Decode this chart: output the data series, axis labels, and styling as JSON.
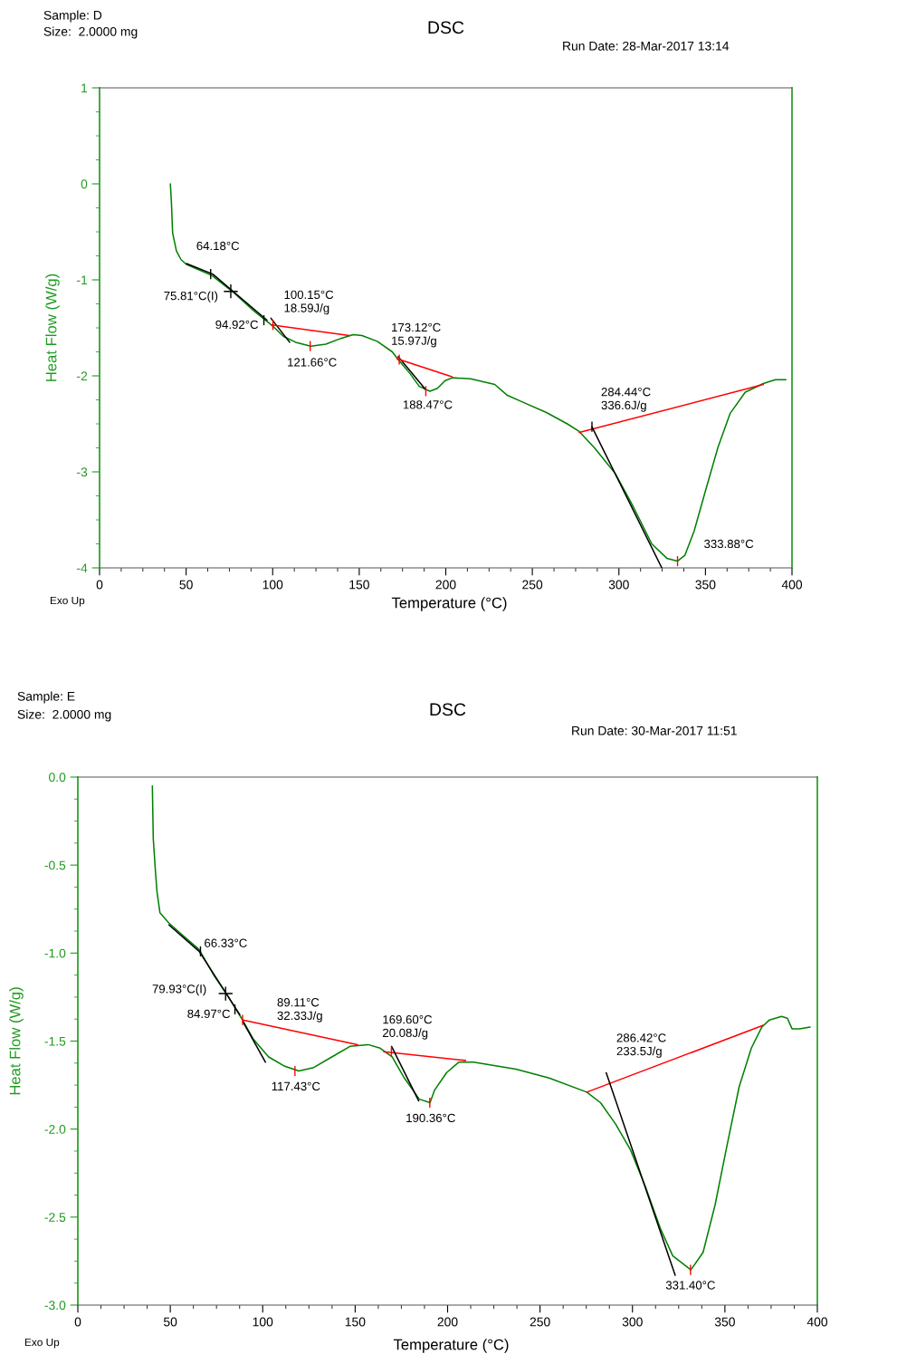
{
  "chart_data": [
    {
      "type": "line",
      "title": "DSC",
      "xlabel": "Temperature (°C)",
      "ylabel": "Heat Flow (W/g)",
      "xlim": [
        0,
        400
      ],
      "ylim": [
        -4,
        1
      ],
      "xticks": [
        0,
        50,
        100,
        150,
        200,
        250,
        300,
        350,
        400
      ],
      "yticks": [
        -4,
        -3,
        -2,
        -1,
        0,
        1
      ],
      "series": [
        {
          "color": "#008000",
          "x": [
            40.9,
            41.5,
            42.2,
            44.4,
            47.1,
            50.2,
            64.5,
            76.7,
            88.9,
            99.3,
            106.3,
            113.3,
            122.0,
            130.7,
            139.4,
            146.4,
            151.6,
            160.4,
            169.1,
            172.5,
            179.5,
            184.7,
            190.8,
            195.2,
            199.6,
            203.9,
            214.4,
            228.3,
            235.3,
            244.0,
            257.9,
            270.2,
            277.1,
            285.9,
            298.0,
            308.5,
            319.0,
            327.7,
            333.8,
            338.1,
            343.4,
            350.3,
            357.3,
            364.3,
            373.0,
            383.4,
            390.4,
            396.5
          ],
          "values": [
            0.0,
            -0.19,
            -0.51,
            -0.7,
            -0.79,
            -0.84,
            -0.95,
            -1.12,
            -1.32,
            -1.47,
            -1.59,
            -1.65,
            -1.69,
            -1.67,
            -1.61,
            -1.57,
            -1.58,
            -1.64,
            -1.75,
            -1.83,
            -1.98,
            -2.11,
            -2.16,
            -2.13,
            -2.05,
            -2.02,
            -2.03,
            -2.09,
            -2.2,
            -2.27,
            -2.38,
            -2.5,
            -2.58,
            -2.75,
            -3.02,
            -3.37,
            -3.75,
            -3.9,
            -3.93,
            -3.87,
            -3.62,
            -3.18,
            -2.74,
            -2.39,
            -2.17,
            -2.08,
            -2.04,
            -2.04
          ]
        },
        {
          "color": "#000000",
          "x": [
            50.2,
            65.4,
            96.7
          ],
          "values": [
            -0.83,
            -0.94,
            -1.42
          ]
        },
        {
          "color": "#000000",
          "x": [
            99.0,
            109.8
          ],
          "values": [
            -1.4,
            -1.65
          ]
        },
        {
          "color": "#ff0000",
          "x": [
            99.3,
            144.3
          ],
          "values": [
            -1.47,
            -1.58
          ]
        },
        {
          "color": "#000000",
          "x": [
            172.5,
            188.2
          ],
          "values": [
            -1.8,
            -2.14
          ]
        },
        {
          "color": "#ff0000",
          "x": [
            171.7,
            203.6
          ],
          "values": [
            -1.82,
            -2.01
          ]
        },
        {
          "color": "#ff0000",
          "x": [
            277.1,
            383.4
          ],
          "values": [
            -2.59,
            -2.09
          ]
        },
        {
          "color": "#000000",
          "x": [
            284.4,
            324.8
          ],
          "values": [
            -2.53,
            -4.0
          ]
        }
      ],
      "annotations": [
        "Sample: D",
        "Size:  2.0000 mg",
        "Run Date: 28-Mar-2017 13:14",
        "Exo Up",
        {
          "text": "64.18°C",
          "x": 64.18,
          "y": -0.94
        },
        {
          "text": "75.81°C(I)",
          "x": 75.81,
          "y": -1.12
        },
        {
          "text": "94.92°C",
          "x": 94.92,
          "y": -1.42
        },
        {
          "text": "100.15°C\n18.59J/g",
          "x": 100.15,
          "y": -1.47
        },
        {
          "text": "121.66°C",
          "x": 121.66,
          "y": -1.69
        },
        {
          "text": "173.12°C\n15.97J/g",
          "x": 173.12,
          "y": -1.83
        },
        {
          "text": "188.47°C",
          "x": 188.47,
          "y": -2.16
        },
        {
          "text": "284.44°C\n336.6J/g",
          "x": 284.44,
          "y": -2.53
        },
        {
          "text": "333.88°C",
          "x": 333.88,
          "y": -3.93
        }
      ]
    },
    {
      "type": "line",
      "title": "DSC",
      "xlabel": "Temperature (°C)",
      "ylabel": "Heat Flow (W/g)",
      "xlim": [
        0,
        400
      ],
      "ylim": [
        -3,
        0
      ],
      "xticks": [
        0,
        50,
        100,
        150,
        200,
        250,
        300,
        350,
        400
      ],
      "yticks": [
        {
          "value": -3,
          "label": "-3.0"
        },
        {
          "value": -2.5,
          "label": "-2.5"
        },
        {
          "value": -2,
          "label": "-2.0"
        },
        {
          "value": -1.5,
          "label": "-1.5"
        },
        {
          "value": -1,
          "label": "-1.0"
        },
        {
          "value": -0.5,
          "label": "-0.5"
        },
        {
          "value": 0,
          "label": "0.0"
        }
      ],
      "series": [
        {
          "color": "#008000",
          "x": [
            40.3,
            40.8,
            42.0,
            42.8,
            44.4,
            49.3,
            55.8,
            65.6,
            73.8,
            80.3,
            88.5,
            95.0,
            103.2,
            111.3,
            119.5,
            127.6,
            137.4,
            147.2,
            157.0,
            163.5,
            170.0,
            176.6,
            184.7,
            190.5,
            192.9,
            199.4,
            206.0,
            214.1,
            237.0,
            254.9,
            275.3,
            282.7,
            290.8,
            299.0,
            307.1,
            315.3,
            321.8,
            331.6,
            338.2,
            344.7,
            351.2,
            357.7,
            364.3,
            370.0,
            374.1,
            380.6,
            383.8,
            386.3,
            390.4,
            396.1
          ],
          "values": [
            -0.05,
            -0.35,
            -0.54,
            -0.65,
            -0.77,
            -0.83,
            -0.89,
            -0.98,
            -1.13,
            -1.23,
            -1.37,
            -1.49,
            -1.59,
            -1.64,
            -1.67,
            -1.65,
            -1.59,
            -1.53,
            -1.52,
            -1.54,
            -1.59,
            -1.71,
            -1.83,
            -1.85,
            -1.78,
            -1.68,
            -1.62,
            -1.62,
            -1.66,
            -1.71,
            -1.79,
            -1.85,
            -1.97,
            -2.12,
            -2.33,
            -2.57,
            -2.72,
            -2.8,
            -2.7,
            -2.43,
            -2.09,
            -1.76,
            -1.54,
            -1.42,
            -1.38,
            -1.36,
            -1.37,
            -1.43,
            -1.43,
            -1.42
          ]
        },
        {
          "color": "#000000",
          "x": [
            49.3,
            65.6,
            87.6
          ],
          "values": [
            -0.84,
            -0.99,
            -1.35
          ]
        },
        {
          "color": "#000000",
          "x": [
            89.3,
            101.5
          ],
          "values": [
            -1.39,
            -1.62
          ]
        },
        {
          "color": "#ff0000",
          "x": [
            89.3,
            151.3
          ],
          "values": [
            -1.38,
            -1.52
          ]
        },
        {
          "color": "#ff0000",
          "x": [
            165.5,
            209.7
          ],
          "values": [
            -1.56,
            -1.61
          ]
        },
        {
          "color": "#000000",
          "x": [
            169.7,
            184.4
          ],
          "values": [
            -1.53,
            -1.84
          ]
        },
        {
          "color": "#ff0000",
          "x": [
            275.3,
            370.8
          ],
          "values": [
            -1.79,
            -1.41
          ]
        },
        {
          "color": "#000000",
          "x": [
            285.8,
            323.1
          ],
          "values": [
            -1.68,
            -2.83
          ]
        }
      ],
      "annotations": [
        "Sample: E",
        "Size:  2.0000 mg",
        "Run Date: 30-Mar-2017 11:51",
        "Exo Up",
        {
          "text": "66.33°C",
          "x": 66.33,
          "y": -0.99
        },
        {
          "text": "79.93°C(I)",
          "x": 79.93,
          "y": -1.23
        },
        {
          "text": "84.97°C",
          "x": 84.97,
          "y": -1.32
        },
        {
          "text": "89.11°C\n32.33J/g",
          "x": 89.11,
          "y": -1.38
        },
        {
          "text": "117.43°C",
          "x": 117.43,
          "y": -1.67
        },
        {
          "text": "169.60°C\n20.08J/g",
          "x": 169.6,
          "y": -1.56
        },
        {
          "text": "190.36°C",
          "x": 190.36,
          "y": -1.85
        },
        {
          "text": "286.42°C\n233.5J/g",
          "x": 286.42,
          "y": -1.7
        },
        {
          "text": "331.40°C",
          "x": 331.4,
          "y": -2.8
        }
      ]
    }
  ]
}
